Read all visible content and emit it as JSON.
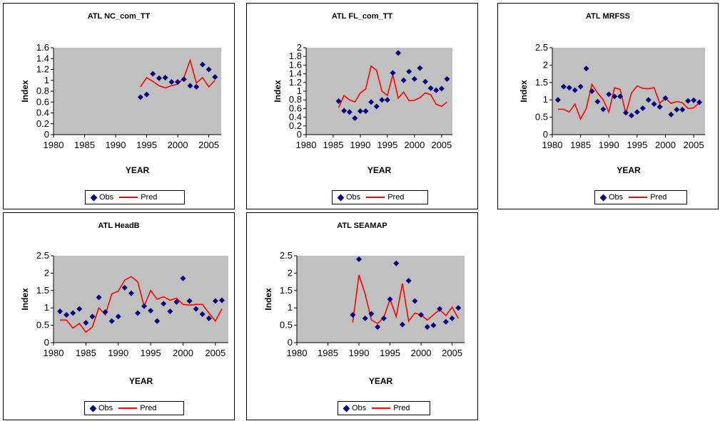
{
  "colors": {
    "plot_bg": "#c0c0c0",
    "obs": "#000080",
    "pred": "#ff0000"
  },
  "legend": {
    "obs_label": "Obs",
    "pred_label": "Pred"
  },
  "chart_data": [
    {
      "type": "scatter",
      "title": "ATL NC_com_TT",
      "xlabel": "YEAR",
      "ylabel": "Index",
      "xlim": [
        1980,
        2007
      ],
      "ylim": [
        0,
        1.6
      ],
      "xticks": [
        "1980",
        "1985",
        "1990",
        "1995",
        "2000",
        "2005"
      ],
      "yticks": [
        "0",
        "0.2",
        "0.4",
        "0.6",
        "0.8",
        "1",
        "1.2",
        "1.4",
        "1.6"
      ],
      "series": [
        {
          "name": "Obs",
          "x": [
            1994,
            1995,
            1996,
            1997,
            1998,
            1999,
            2000,
            2001,
            2002,
            2003,
            2004,
            2005,
            2006
          ],
          "y": [
            0.69,
            0.74,
            1.12,
            1.04,
            1.05,
            0.97,
            0.97,
            1.02,
            0.9,
            0.88,
            1.29,
            1.2,
            1.06
          ]
        },
        {
          "name": "Pred",
          "x": [
            1994,
            1995,
            1996,
            1997,
            1998,
            1999,
            2000,
            2001,
            2002,
            2003,
            2004,
            2005,
            2006
          ],
          "y": [
            0.88,
            1.05,
            0.98,
            0.9,
            0.86,
            0.9,
            0.93,
            1.05,
            1.37,
            0.95,
            1.05,
            0.88,
            1.0
          ]
        }
      ]
    },
    {
      "type": "scatter",
      "title": "ATL FL_com_TT",
      "xlabel": "YEAR",
      "ylabel": "Index",
      "xlim": [
        1980,
        2007
      ],
      "ylim": [
        0,
        2
      ],
      "xticks": [
        "1980",
        "1985",
        "1990",
        "1995",
        "2000",
        "2005"
      ],
      "yticks": [
        "0",
        "0.2",
        "0.4",
        "0.6",
        "0.8",
        "1",
        "1.2",
        "1.4",
        "1.6",
        "1.8",
        "2"
      ],
      "series": [
        {
          "name": "Obs",
          "x": [
            1986,
            1987,
            1988,
            1989,
            1990,
            1991,
            1992,
            1993,
            1994,
            1995,
            1996,
            1997,
            1998,
            1999,
            2000,
            2001,
            2002,
            2003,
            2004,
            2005,
            2006
          ],
          "y": [
            0.77,
            0.55,
            0.52,
            0.38,
            0.54,
            0.54,
            0.75,
            0.65,
            0.8,
            0.8,
            1.42,
            1.88,
            1.25,
            1.45,
            1.28,
            1.53,
            1.22,
            1.07,
            1.02,
            1.06,
            1.28
          ]
        },
        {
          "name": "Pred",
          "x": [
            1986,
            1987,
            1988,
            1989,
            1990,
            1991,
            1992,
            1993,
            1994,
            1995,
            1996,
            1997,
            1998,
            1999,
            2000,
            2001,
            2002,
            2003,
            2004,
            2005,
            2006
          ],
          "y": [
            0.62,
            0.9,
            0.8,
            0.75,
            0.96,
            1.05,
            1.58,
            1.48,
            1.0,
            0.9,
            1.38,
            0.84,
            0.98,
            0.78,
            0.79,
            0.85,
            0.96,
            0.92,
            0.7,
            0.65,
            0.75
          ]
        }
      ]
    },
    {
      "type": "scatter",
      "title": "ATL MRFSS",
      "xlabel": "YEAR",
      "ylabel": "Index",
      "xlim": [
        1980,
        2007
      ],
      "ylim": [
        0,
        2.5
      ],
      "xticks": [
        "1980",
        "1985",
        "1990",
        "1995",
        "2000",
        "2005"
      ],
      "yticks": [
        "0",
        "0.5",
        "1",
        "1.5",
        "2",
        "2.5"
      ],
      "series": [
        {
          "name": "Obs",
          "x": [
            1981,
            1982,
            1983,
            1984,
            1985,
            1986,
            1987,
            1988,
            1989,
            1990,
            1991,
            1992,
            1993,
            1994,
            1995,
            1996,
            1997,
            1998,
            1999,
            2000,
            2001,
            2002,
            2003,
            2004,
            2005,
            2006
          ],
          "y": [
            1.0,
            1.38,
            1.35,
            1.28,
            1.38,
            1.9,
            1.25,
            0.95,
            0.73,
            1.16,
            1.1,
            1.1,
            0.63,
            0.55,
            0.65,
            0.76,
            1.0,
            0.88,
            0.8,
            1.05,
            0.58,
            0.72,
            0.72,
            0.97,
            0.99,
            0.93
          ]
        },
        {
          "name": "Pred",
          "x": [
            1981,
            1982,
            1983,
            1984,
            1985,
            1986,
            1987,
            1988,
            1989,
            1990,
            1991,
            1992,
            1993,
            1994,
            1995,
            1996,
            1997,
            1998,
            1999,
            2000,
            2001,
            2002,
            2003,
            2004,
            2005,
            2006
          ],
          "y": [
            0.73,
            0.73,
            0.65,
            0.88,
            0.45,
            0.75,
            1.45,
            1.2,
            1.0,
            0.65,
            1.35,
            1.3,
            0.6,
            1.2,
            1.4,
            1.33,
            1.32,
            1.35,
            0.9,
            1.05,
            0.9,
            0.95,
            0.92,
            0.75,
            0.77,
            0.92
          ]
        }
      ]
    },
    {
      "type": "scatter",
      "title": "ATL HeadB",
      "xlabel": "YEAR",
      "ylabel": "Index",
      "xlim": [
        1980,
        2007
      ],
      "ylim": [
        0,
        2.5
      ],
      "xticks": [
        "1980",
        "1985",
        "1990",
        "1995",
        "2000",
        "2005"
      ],
      "yticks": [
        "0",
        "0.5",
        "1",
        "1.5",
        "2",
        "2.5"
      ],
      "series": [
        {
          "name": "Obs",
          "x": [
            1981,
            1982,
            1983,
            1984,
            1985,
            1986,
            1987,
            1988,
            1989,
            1990,
            1991,
            1992,
            1993,
            1994,
            1995,
            1996,
            1997,
            1998,
            1999,
            2000,
            2001,
            2002,
            2003,
            2004,
            2005,
            2006
          ],
          "y": [
            0.9,
            0.8,
            0.85,
            0.97,
            0.57,
            0.75,
            1.3,
            0.88,
            0.62,
            0.75,
            1.58,
            1.42,
            0.85,
            1.05,
            0.92,
            0.62,
            1.12,
            0.9,
            1.17,
            1.85,
            1.2,
            0.97,
            0.82,
            0.7,
            1.2,
            1.22
          ]
        },
        {
          "name": "Pred",
          "x": [
            1981,
            1982,
            1983,
            1984,
            1985,
            1986,
            1987,
            1988,
            1989,
            1990,
            1991,
            1992,
            1993,
            1994,
            1995,
            1996,
            1997,
            1998,
            1999,
            2000,
            2001,
            2002,
            2003,
            2004,
            2005,
            2006
          ],
          "y": [
            0.65,
            0.65,
            0.42,
            0.55,
            0.3,
            0.45,
            1.0,
            0.8,
            1.4,
            1.48,
            1.8,
            1.9,
            1.75,
            1.05,
            1.5,
            1.25,
            1.32,
            1.22,
            1.28,
            1.1,
            1.08,
            1.1,
            1.1,
            0.85,
            0.62,
            0.97
          ]
        }
      ]
    },
    {
      "type": "scatter",
      "title": "ATL SEAMAP",
      "xlabel": "YEAR",
      "ylabel": "Index",
      "xlim": [
        1980,
        2007
      ],
      "ylim": [
        0,
        2.5
      ],
      "xticks": [
        "1980",
        "1985",
        "1990",
        "1995",
        "2000",
        "2005"
      ],
      "yticks": [
        "0",
        "0.5",
        "1",
        "1.5",
        "2",
        "2.5"
      ],
      "series": [
        {
          "name": "Obs",
          "x": [
            1989,
            1990,
            1991,
            1992,
            1993,
            1994,
            1995,
            1996,
            1997,
            1998,
            1999,
            2000,
            2001,
            2002,
            2003,
            2004,
            2005,
            2006
          ],
          "y": [
            0.8,
            2.4,
            0.7,
            0.83,
            0.45,
            0.7,
            1.25,
            2.28,
            0.52,
            1.78,
            1.2,
            0.8,
            0.45,
            0.5,
            0.97,
            0.6,
            0.7,
            1.0
          ]
        },
        {
          "name": "Pred",
          "x": [
            1989,
            1990,
            1991,
            1992,
            1993,
            1994,
            1995,
            1996,
            1997,
            1998,
            1999,
            2000,
            2001,
            2002,
            2003,
            2004,
            2005,
            2006
          ],
          "y": [
            0.58,
            1.95,
            1.4,
            0.65,
            0.55,
            0.72,
            1.25,
            0.75,
            1.7,
            0.62,
            0.85,
            0.8,
            0.65,
            0.8,
            0.95,
            0.78,
            1.02,
            0.7
          ]
        }
      ]
    }
  ]
}
